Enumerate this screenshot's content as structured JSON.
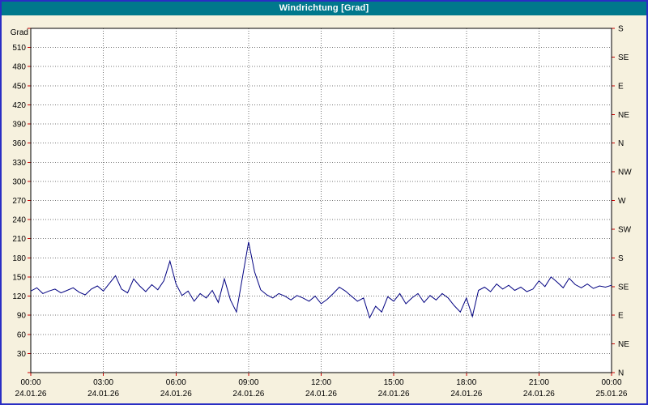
{
  "window": {
    "title": "Windrichtung [Grad]"
  },
  "colors": {
    "titlebar_bg": "#00788c",
    "titlebar_text": "#ffffff",
    "window_bg": "#f6f1de",
    "window_border": "#2a2ec4",
    "plot_bg": "#ffffff",
    "plot_frame": "#000000",
    "grid": "#777777",
    "axis_tick": "#cc0000",
    "axis_text": "#000000",
    "line": "#000080"
  },
  "chart_data": {
    "type": "line",
    "title": "Windrichtung [Grad]",
    "ylabel_left_header": "Grad",
    "ylim": [
      0,
      540
    ],
    "y_left_tick_interval": 30,
    "y_left_tick_values": [
      30,
      60,
      90,
      120,
      150,
      180,
      210,
      240,
      270,
      300,
      330,
      360,
      390,
      420,
      450,
      480,
      510
    ],
    "y_right_tick_interval": 45,
    "y_right_labels_top_to_bottom": [
      "S",
      "SE",
      "E",
      "NE",
      "N",
      "NW",
      "W",
      "SW",
      "S",
      "SE",
      "E",
      "NE",
      "N"
    ],
    "xlim": [
      0,
      24
    ],
    "x_tick_interval_hours": 3,
    "x_tick_labels": [
      "00:00",
      "03:00",
      "06:00",
      "09:00",
      "12:00",
      "15:00",
      "18:00",
      "21:00",
      "00:00"
    ],
    "x_date_labels": [
      "24.01.26",
      "24.01.26",
      "24.01.26",
      "24.01.26",
      "24.01.26",
      "24.01.26",
      "24.01.26",
      "24.01.26",
      "25.01.26"
    ],
    "grid": {
      "x_interval_hours": 3,
      "y_interval": 30,
      "style": "dotted"
    },
    "x_start_hour": 0,
    "x_step_hours": 0.25,
    "series": [
      {
        "name": "Windrichtung",
        "unit": "Grad",
        "color": "#000080",
        "values": [
          128,
          133,
          124,
          128,
          131,
          125,
          129,
          133,
          126,
          122,
          131,
          136,
          128,
          140,
          152,
          131,
          125,
          147,
          136,
          127,
          138,
          130,
          144,
          175,
          139,
          121,
          128,
          112,
          124,
          117,
          129,
          110,
          147,
          114,
          95,
          150,
          205,
          158,
          130,
          122,
          117,
          124,
          120,
          114,
          121,
          117,
          112,
          120,
          108,
          115,
          124,
          134,
          128,
          120,
          112,
          117,
          86,
          104,
          95,
          119,
          112,
          124,
          108,
          117,
          124,
          110,
          121,
          114,
          124,
          117,
          105,
          95,
          117,
          88,
          129,
          134,
          127,
          139,
          131,
          137,
          129,
          134,
          127,
          131,
          144,
          135,
          150,
          142,
          133,
          148,
          138,
          133,
          139,
          132,
          136,
          134,
          137
        ]
      }
    ]
  }
}
